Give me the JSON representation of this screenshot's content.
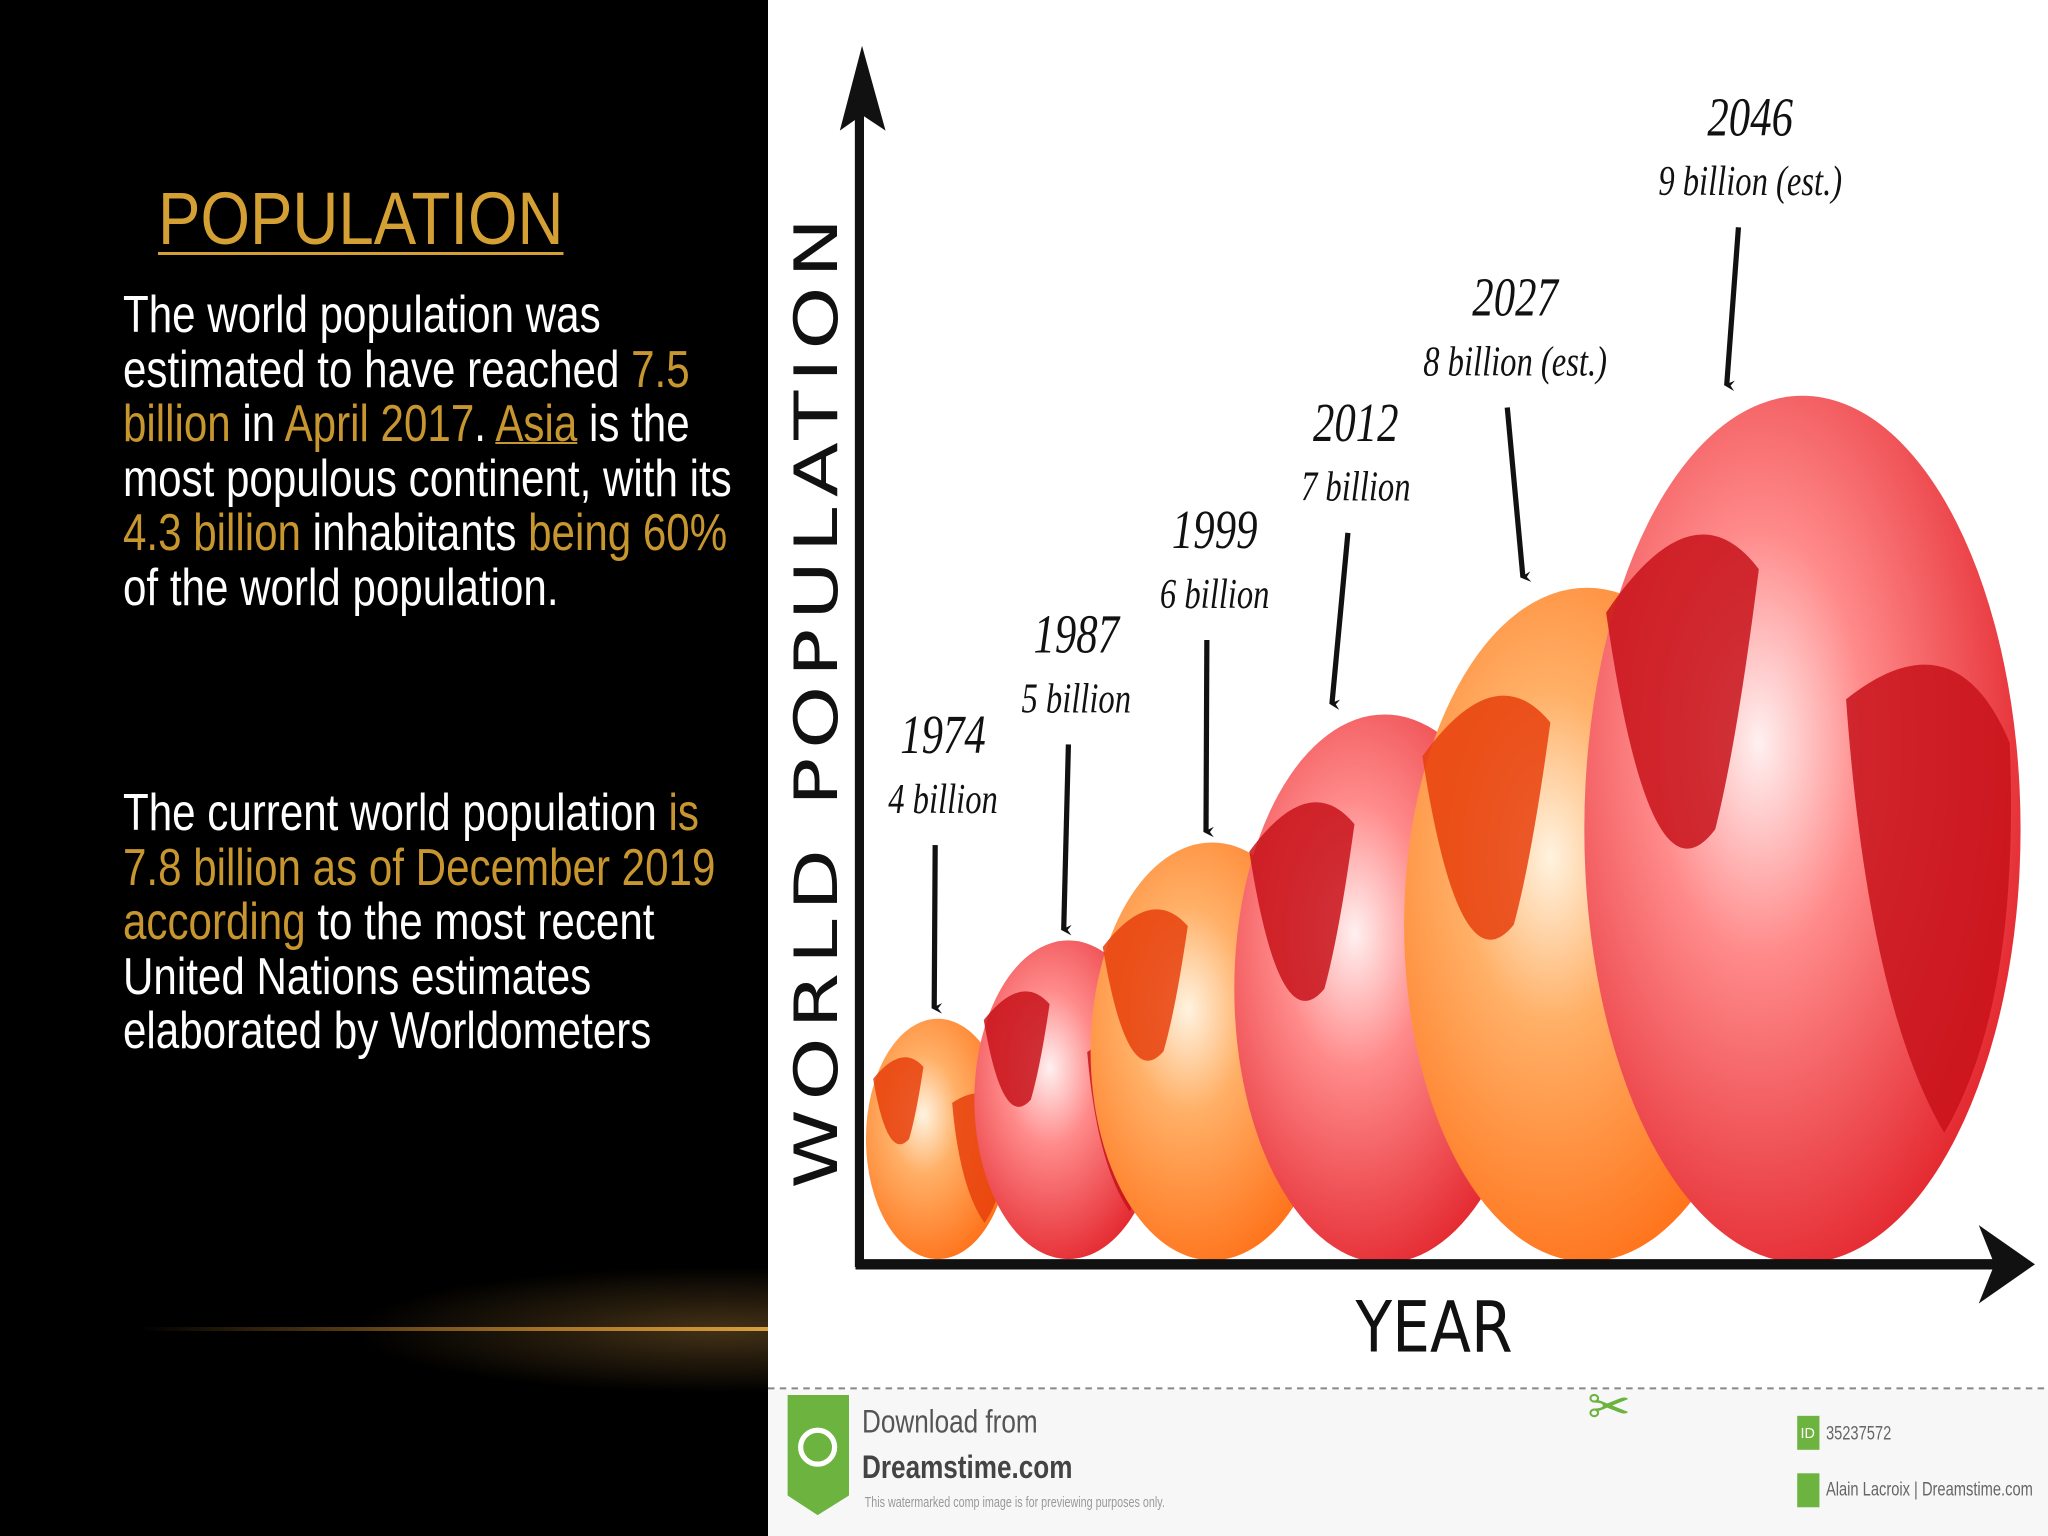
{
  "slide": {
    "title": "POPULATION",
    "paragraphs": [
      [
        {
          "text": "The world population was estimated to have reached ",
          "style": "plain"
        },
        {
          "text": "7.5 billion",
          "style": "accent"
        },
        {
          "text": " in ",
          "style": "plain"
        },
        {
          "text": "April 2017",
          "style": "accent"
        },
        {
          "text": ". ",
          "style": "plain"
        },
        {
          "text": "Asia",
          "style": "link"
        },
        {
          "text": " is the most populous continent, with its ",
          "style": "plain"
        },
        {
          "text": "4.3 billion",
          "style": "accent"
        },
        {
          "text": " inhabitants ",
          "style": "plain"
        },
        {
          "text": "being 60%",
          "style": "accent"
        },
        {
          "text": " of the world population.",
          "style": "plain"
        }
      ],
      [
        {
          "text": "The current world population ",
          "style": "plain"
        },
        {
          "text": "is 7.8 billion as of December 2019 according",
          "style": "accent"
        },
        {
          "text": " to the most recent United Nations estimates elaborated by Worldometers",
          "style": "plain"
        }
      ]
    ]
  },
  "infographic": {
    "y_axis_label": "WORLD POPULATION",
    "x_axis_label": "YEAR",
    "milestones": [
      {
        "year": "1974",
        "label": "4 billion"
      },
      {
        "year": "1987",
        "label": "5 billion"
      },
      {
        "year": "1999",
        "label": "6 billion"
      },
      {
        "year": "2012",
        "label": "7 billion"
      },
      {
        "year": "2027",
        "label": "8 billion (est.)"
      },
      {
        "year": "2046",
        "label": "9 billion (est.)"
      }
    ]
  },
  "watermark": {
    "download": "Download from",
    "site": "Dreamstime.com",
    "notice": "This watermarked comp image is for previewing purposes only.",
    "id_badge": "ID",
    "id": "35237572",
    "credit": "Alain Lacroix | Dreamstime.com"
  }
}
